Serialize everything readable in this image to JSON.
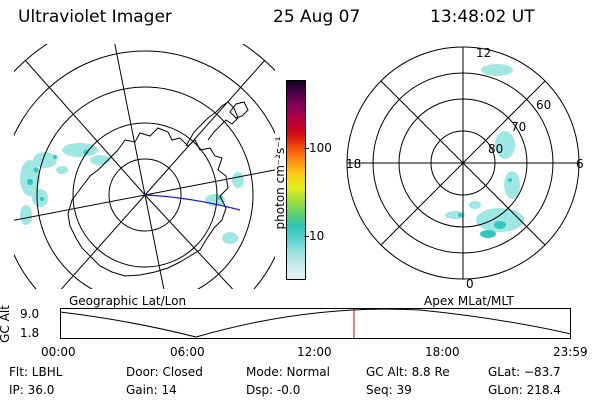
{
  "header": {
    "instrument": "Ultraviolet Imager",
    "date": "25 Aug 07",
    "time": "13:48:02 UT"
  },
  "left_map": {
    "caption": "Geographic Lat/Lon"
  },
  "right_map": {
    "caption": "Apex MLat/MLT",
    "mlt_labels": [
      "12",
      "18",
      "6",
      "0"
    ],
    "mlat_labels": [
      "60",
      "70",
      "80"
    ]
  },
  "colorbar": {
    "unit_label": "photon cm⁻²s⁻¹",
    "ticks": [
      "100",
      "10"
    ],
    "scale": "log",
    "colors": [
      "#e8f4f6",
      "#c8ecec",
      "#9fe0e0",
      "#5fd3cf",
      "#2dc6b6",
      "#5fcf6a",
      "#a6e03a",
      "#e7ee1e",
      "#ffc81a",
      "#ff8c10",
      "#f24a0c",
      "#d20c12",
      "#b8003a",
      "#8a0058",
      "#55004e",
      "#14002a"
    ]
  },
  "altitude_plot": {
    "ylabel": "GC Alt",
    "yticks": [
      "9.0",
      "1.8"
    ],
    "xticks": [
      "00:00",
      "06:00",
      "12:00",
      "18:00",
      "23:59"
    ],
    "current_time": "13:48"
  },
  "info": {
    "flt": "Flt: LBHL",
    "ip": "IP: 36.0",
    "door": "Door: Closed",
    "gain": "Gain: 14",
    "mode": "Mode: Normal",
    "dsp": "Dsp:    -0.0",
    "gcalt": "GC Alt: 8.8 Re",
    "seq": "Seq: 39",
    "glat": "GLat: −83.7",
    "glon": "GLon: 218.4"
  }
}
